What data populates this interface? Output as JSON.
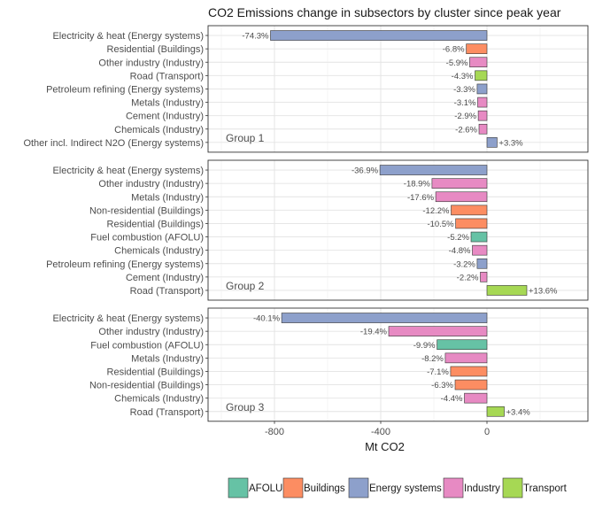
{
  "chart_data": {
    "type": "bar",
    "orientation": "horizontal",
    "title": "CO2 Emissions change in subsectors by cluster since peak year",
    "xlabel": "Mt CO2",
    "ylabel": "",
    "xlim": [
      -1050,
      380
    ],
    "xticks": [
      -800,
      -400,
      0
    ],
    "xtick_labels": [
      "-800",
      "-400",
      "0"
    ],
    "grid": true,
    "legend_position": "bottom",
    "colors": {
      "AFOLU": "#66c2a5",
      "Buildings": "#fc8d62",
      "Energy systems": "#8da0cb",
      "Industry": "#e78ac3",
      "Transport": "#a6d854"
    },
    "legend": [
      "AFOLU",
      "Buildings",
      "Energy systems",
      "Industry",
      "Transport"
    ],
    "panels": [
      {
        "group": "Group 1",
        "bars": [
          {
            "label": "Electricity & heat (Energy systems)",
            "sector": "Energy systems",
            "value": -815,
            "pct_label": "-74.3%"
          },
          {
            "label": "Residential (Buildings)",
            "sector": "Buildings",
            "value": -78,
            "pct_label": "-6.8%"
          },
          {
            "label": "Other industry (Industry)",
            "sector": "Industry",
            "value": -65,
            "pct_label": "-5.9%"
          },
          {
            "label": "Road  (Transport)",
            "sector": "Transport",
            "value": -45,
            "pct_label": "-4.3%"
          },
          {
            "label": "Petroleum refining (Energy systems)",
            "sector": "Energy systems",
            "value": -37,
            "pct_label": "-3.3%"
          },
          {
            "label": "Metals (Industry)",
            "sector": "Industry",
            "value": -35,
            "pct_label": "-3.1%"
          },
          {
            "label": "Cement (Industry)",
            "sector": "Industry",
            "value": -33,
            "pct_label": "-2.9%"
          },
          {
            "label": "Chemicals (Industry)",
            "sector": "Industry",
            "value": -30,
            "pct_label": "-2.6%"
          },
          {
            "label": "Other incl. Indirect N2O (Energy systems)",
            "sector": "Energy systems",
            "value": 38,
            "pct_label": "+3.3%"
          }
        ]
      },
      {
        "group": "Group 2",
        "bars": [
          {
            "label": "Electricity & heat (Energy systems)",
            "sector": "Energy systems",
            "value": -403,
            "pct_label": "-36.9%"
          },
          {
            "label": "Other industry (Industry)",
            "sector": "Industry",
            "value": -207,
            "pct_label": "-18.9%"
          },
          {
            "label": "Metals (Industry)",
            "sector": "Industry",
            "value": -193,
            "pct_label": "-17.6%"
          },
          {
            "label": "Non-residential (Buildings)",
            "sector": "Buildings",
            "value": -135,
            "pct_label": "-12.2%"
          },
          {
            "label": "Residential (Buildings)",
            "sector": "Buildings",
            "value": -118,
            "pct_label": "-10.5%"
          },
          {
            "label": "Fuel combustion (AFOLU)",
            "sector": "AFOLU",
            "value": -60,
            "pct_label": "-5.2%"
          },
          {
            "label": "Chemicals (Industry)",
            "sector": "Industry",
            "value": -55,
            "pct_label": "-4.8%"
          },
          {
            "label": "Petroleum refining (Energy systems)",
            "sector": "Energy systems",
            "value": -37,
            "pct_label": "-3.2%"
          },
          {
            "label": "Cement (Industry)",
            "sector": "Industry",
            "value": -25,
            "pct_label": "-2.2%"
          },
          {
            "label": "Road  (Transport)",
            "sector": "Transport",
            "value": 150,
            "pct_label": "+13.6%"
          }
        ]
      },
      {
        "group": "Group 3",
        "bars": [
          {
            "label": "Electricity & heat (Energy systems)",
            "sector": "Energy systems",
            "value": -773,
            "pct_label": "-40.1%"
          },
          {
            "label": "Other industry (Industry)",
            "sector": "Industry",
            "value": -370,
            "pct_label": "-19.4%"
          },
          {
            "label": "Fuel combustion (AFOLU)",
            "sector": "AFOLU",
            "value": -188,
            "pct_label": "-9.9%"
          },
          {
            "label": "Metals (Industry)",
            "sector": "Industry",
            "value": -157,
            "pct_label": "-8.2%"
          },
          {
            "label": "Residential (Buildings)",
            "sector": "Buildings",
            "value": -137,
            "pct_label": "-7.1%"
          },
          {
            "label": "Non-residential (Buildings)",
            "sector": "Buildings",
            "value": -120,
            "pct_label": "-6.3%"
          },
          {
            "label": "Chemicals (Industry)",
            "sector": "Industry",
            "value": -85,
            "pct_label": "-4.4%"
          },
          {
            "label": "Road  (Transport)",
            "sector": "Transport",
            "value": 65,
            "pct_label": "+3.4%"
          }
        ]
      }
    ]
  }
}
